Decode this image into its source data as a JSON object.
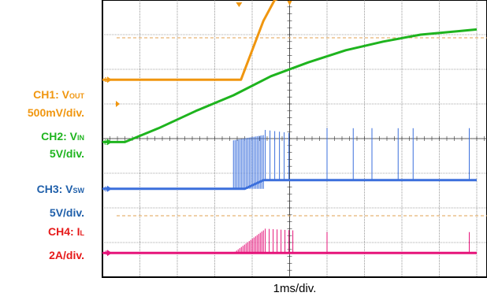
{
  "chart_data": {
    "type": "line",
    "title": "",
    "xlabel": "1ms/div.",
    "ylabel": "",
    "grid": true,
    "legend_placement": "left",
    "x_unit": "ms",
    "x_range_div": [
      0,
      10
    ],
    "y_range_div": [
      0,
      8
    ],
    "channels": [
      {
        "id": "CH1",
        "name_main": "CH1: V",
        "name_sub": "OUT",
        "scale": "500mV/div.",
        "color": "#f0960f",
        "x": [
          0,
          3.7,
          4.3,
          4.6,
          5.0,
          10
        ],
        "y": [
          1.7,
          1.7,
          3.4,
          4.0,
          4.15,
          4.15
        ]
      },
      {
        "id": "CH2",
        "name_main": "CH2: V",
        "name_sub": "IN",
        "scale": "5V/div.",
        "color": "#1eb41e",
        "x": [
          0,
          0.6,
          1.5,
          2.5,
          3.5,
          4.5,
          5.5,
          6.5,
          7.5,
          8.5,
          9.5,
          10
        ],
        "y": [
          -0.1,
          -0.1,
          0.3,
          0.8,
          1.25,
          1.8,
          2.2,
          2.55,
          2.8,
          3.0,
          3.1,
          3.15
        ]
      },
      {
        "id": "CH3",
        "name_main": "CH3: V",
        "name_sub": "SW",
        "scale": "5V/div.",
        "color": "#3b6fdc",
        "x": [
          0,
          3.8,
          4.1,
          4.3,
          10
        ],
        "y": [
          -1.45,
          -1.45,
          -1.3,
          -1.2,
          -1.2
        ]
      },
      {
        "id": "CH4",
        "name_main": "CH4: I",
        "name_sub": "L",
        "scale": "2A/div.",
        "color": "#e6147a",
        "x": [
          0,
          10
        ],
        "y": [
          -3.3,
          -3.3
        ]
      }
    ]
  }
}
